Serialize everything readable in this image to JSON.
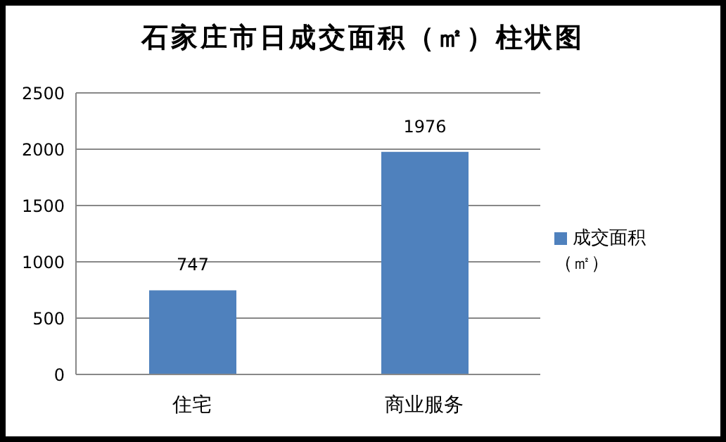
{
  "chart_data": {
    "type": "bar",
    "title": "石家庄市日成交面积（㎡）柱状图",
    "categories": [
      "住宅",
      "商业服务"
    ],
    "series": [
      {
        "name": "成交面积（㎡）",
        "color": "#4f81bd",
        "values": [
          747,
          1976
        ]
      }
    ],
    "ylim": [
      0,
      2500
    ],
    "yticks": [
      0,
      500,
      1000,
      1500,
      2000,
      2500
    ],
    "grid": "y",
    "legend": "right",
    "data_labels": true
  }
}
